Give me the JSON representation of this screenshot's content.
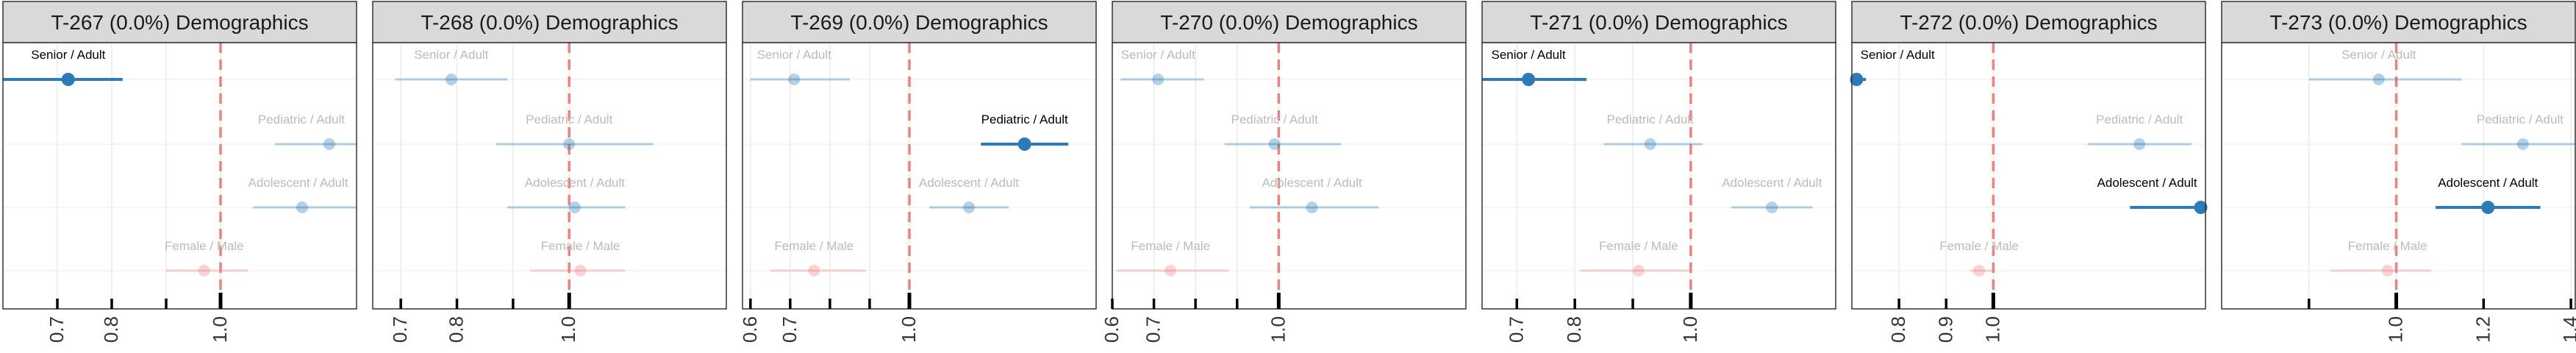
{
  "colors": {
    "strip_bg": "#d9d9d9",
    "frame": "#333333",
    "grid": "#ebebeb",
    "ref_line": "#f08080",
    "blue": "#2c7bb6",
    "red": "#f08080",
    "label_highlight": "#000000",
    "label_muted": "#bbbbbb",
    "tick_label": "#333333"
  },
  "chart_data": [
    {
      "type": "scatter",
      "title": "T-267 (0.0%) Demographics",
      "xlim": [
        0.6,
        1.25
      ],
      "ticks": [
        0.7,
        0.8,
        1.0
      ],
      "tick_labels": [
        "0.7",
        "0.8",
        "1.0"
      ],
      "minor_ticks": [
        0.9
      ],
      "ref_x": 1.0,
      "grid": true,
      "points": [
        {
          "label": "Senior / Adult",
          "estimate": 0.72,
          "ci": [
            0.6,
            0.82
          ],
          "group": "age",
          "highlight": true
        },
        {
          "label": "Pediatric / Adult",
          "estimate": 1.2,
          "ci": [
            1.1,
            1.3
          ],
          "group": "age",
          "highlight": false
        },
        {
          "label": "Adolescent / Adult",
          "estimate": 1.15,
          "ci": [
            1.06,
            1.25
          ],
          "group": "age",
          "highlight": false
        },
        {
          "label": "Female / Male",
          "estimate": 0.97,
          "ci": [
            0.9,
            1.05
          ],
          "group": "sex",
          "highlight": false
        }
      ]
    },
    {
      "type": "scatter",
      "title": "T-268 (0.0%) Demographics",
      "xlim": [
        0.65,
        1.28
      ],
      "ticks": [
        0.7,
        0.8,
        1.0
      ],
      "tick_labels": [
        "0.7",
        "0.8",
        "1.0"
      ],
      "minor_ticks": [
        0.9
      ],
      "ref_x": 1.0,
      "grid": true,
      "points": [
        {
          "label": "Senior / Adult",
          "estimate": 0.79,
          "ci": [
            0.69,
            0.89
          ],
          "group": "age",
          "highlight": false
        },
        {
          "label": "Pediatric / Adult",
          "estimate": 1.0,
          "ci": [
            0.87,
            1.15
          ],
          "group": "age",
          "highlight": false
        },
        {
          "label": "Adolescent / Adult",
          "estimate": 1.01,
          "ci": [
            0.89,
            1.1
          ],
          "group": "age",
          "highlight": false
        },
        {
          "label": "Female / Male",
          "estimate": 1.02,
          "ci": [
            0.93,
            1.1
          ],
          "group": "sex",
          "highlight": false
        }
      ]
    },
    {
      "type": "scatter",
      "title": "T-269 (0.0%) Demographics",
      "xlim": [
        0.58,
        1.47
      ],
      "ticks": [
        0.6,
        0.7,
        1.0
      ],
      "tick_labels": [
        "0.6",
        "0.7",
        "1.0"
      ],
      "minor_ticks": [
        0.8,
        0.9
      ],
      "ref_x": 1.0,
      "grid": true,
      "points": [
        {
          "label": "Senior / Adult",
          "estimate": 0.71,
          "ci": [
            0.6,
            0.85
          ],
          "group": "age",
          "highlight": false
        },
        {
          "label": "Pediatric / Adult",
          "estimate": 1.29,
          "ci": [
            1.18,
            1.4
          ],
          "group": "age",
          "highlight": true
        },
        {
          "label": "Adolescent / Adult",
          "estimate": 1.15,
          "ci": [
            1.05,
            1.25
          ],
          "group": "age",
          "highlight": false
        },
        {
          "label": "Female / Male",
          "estimate": 0.76,
          "ci": [
            0.65,
            0.89
          ],
          "group": "sex",
          "highlight": false
        }
      ]
    },
    {
      "type": "scatter",
      "title": "T-270 (0.0%) Demographics",
      "xlim": [
        0.6,
        1.45
      ],
      "ticks": [
        0.6,
        0.7,
        1.0
      ],
      "tick_labels": [
        "0.6",
        "0.7",
        "1.0"
      ],
      "minor_ticks": [
        0.8,
        0.9
      ],
      "ref_x": 1.0,
      "grid": true,
      "points": [
        {
          "label": "Senior / Adult",
          "estimate": 0.71,
          "ci": [
            0.62,
            0.82
          ],
          "group": "age",
          "highlight": false
        },
        {
          "label": "Pediatric / Adult",
          "estimate": 0.99,
          "ci": [
            0.87,
            1.15
          ],
          "group": "age",
          "highlight": false
        },
        {
          "label": "Adolescent / Adult",
          "estimate": 1.08,
          "ci": [
            0.93,
            1.24
          ],
          "group": "age",
          "highlight": false
        },
        {
          "label": "Female / Male",
          "estimate": 0.74,
          "ci": [
            0.61,
            0.88
          ],
          "group": "sex",
          "highlight": false
        }
      ]
    },
    {
      "type": "scatter",
      "title": "T-271 (0.0%) Demographics",
      "xlim": [
        0.64,
        1.25
      ],
      "ticks": [
        0.7,
        0.8,
        1.0
      ],
      "tick_labels": [
        "0.7",
        "0.8",
        "1.0"
      ],
      "minor_ticks": [
        0.9
      ],
      "ref_x": 1.0,
      "grid": true,
      "points": [
        {
          "label": "Senior / Adult",
          "estimate": 0.72,
          "ci": [
            0.64,
            0.82
          ],
          "group": "age",
          "highlight": true
        },
        {
          "label": "Pediatric / Adult",
          "estimate": 0.93,
          "ci": [
            0.85,
            1.02
          ],
          "group": "age",
          "highlight": false
        },
        {
          "label": "Adolescent / Adult",
          "estimate": 1.14,
          "ci": [
            1.07,
            1.21
          ],
          "group": "age",
          "highlight": false
        },
        {
          "label": "Female / Male",
          "estimate": 0.91,
          "ci": [
            0.81,
            1.0
          ],
          "group": "sex",
          "highlight": false
        }
      ]
    },
    {
      "type": "scatter",
      "title": "T-272 (0.0%) Demographics",
      "xlim": [
        0.7,
        1.45
      ],
      "ticks": [
        0.8,
        0.9,
        1.0
      ],
      "tick_labels": [
        "0.8",
        "0.9",
        "1.0"
      ],
      "minor_ticks": [],
      "ref_x": 1.0,
      "grid": true,
      "points": [
        {
          "label": "Senior / Adult",
          "estimate": 0.71,
          "ci": [
            0.7,
            0.73
          ],
          "group": "age",
          "highlight": true
        },
        {
          "label": "Pediatric / Adult",
          "estimate": 1.31,
          "ci": [
            1.2,
            1.42
          ],
          "group": "age",
          "highlight": false
        },
        {
          "label": "Adolescent / Adult",
          "estimate": 1.44,
          "ci": [
            1.29,
            1.58
          ],
          "group": "age",
          "highlight": true
        },
        {
          "label": "Female / Male",
          "estimate": 0.97,
          "ci": [
            0.95,
            1.0
          ],
          "group": "sex",
          "highlight": false
        }
      ]
    },
    {
      "type": "scatter",
      "title": "T-273 (0.0%) Demographics",
      "xlim": [
        0.6,
        1.41
      ],
      "ticks": [
        1.0,
        1.2,
        1.4
      ],
      "tick_labels": [
        "1.0",
        "1.2",
        "1.4"
      ],
      "minor_ticks": [
        0.8
      ],
      "ref_x": 1.0,
      "grid": true,
      "points": [
        {
          "label": "Senior / Adult",
          "estimate": 0.96,
          "ci": [
            0.8,
            1.15
          ],
          "group": "age",
          "highlight": false
        },
        {
          "label": "Pediatric / Adult",
          "estimate": 1.29,
          "ci": [
            1.15,
            1.43
          ],
          "group": "age",
          "highlight": false
        },
        {
          "label": "Adolescent / Adult",
          "estimate": 1.21,
          "ci": [
            1.09,
            1.33
          ],
          "group": "age",
          "highlight": true
        },
        {
          "label": "Female / Male",
          "estimate": 0.98,
          "ci": [
            0.85,
            1.08
          ],
          "group": "sex",
          "highlight": false
        }
      ]
    }
  ]
}
